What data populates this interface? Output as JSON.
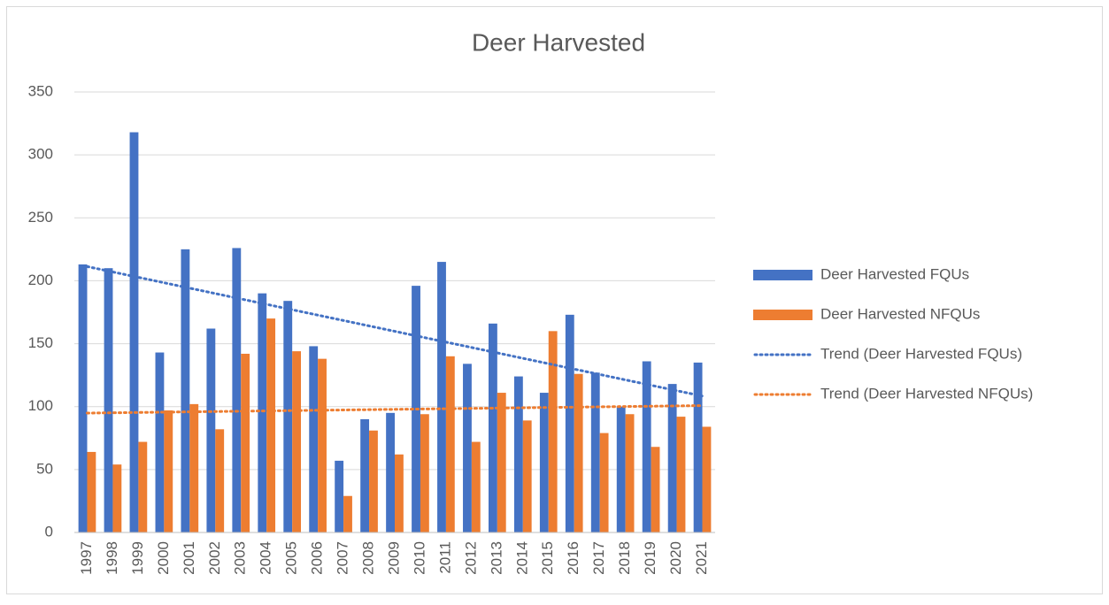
{
  "chart_data": {
    "type": "bar",
    "title": "Deer Harvested",
    "categories": [
      "1997",
      "1998",
      "1999",
      "2000",
      "2001",
      "2002",
      "2003",
      "2004",
      "2005",
      "2006",
      "2007",
      "2008",
      "2009",
      "2010",
      "2011",
      "2012",
      "2013",
      "2014",
      "2015",
      "2016",
      "2017",
      "2018",
      "2019",
      "2020",
      "2021"
    ],
    "series": [
      {
        "name": "Deer Harvested FQUs",
        "color": "#4472c4",
        "values": [
          213,
          210,
          318,
          143,
          225,
          162,
          226,
          190,
          184,
          148,
          57,
          90,
          95,
          196,
          215,
          134,
          166,
          124,
          111,
          173,
          127,
          100,
          136,
          118,
          135
        ]
      },
      {
        "name": "Deer Harvested NFQUs",
        "color": "#ed7d31",
        "values": [
          64,
          54,
          72,
          97,
          102,
          82,
          142,
          170,
          144,
          138,
          29,
          81,
          62,
          94,
          140,
          72,
          111,
          89,
          160,
          126,
          79,
          94,
          68,
          92,
          84
        ]
      }
    ],
    "trendlines": [
      {
        "name": "Trend (Deer Harvested FQUs)",
        "color": "#4472c4",
        "series": 0
      },
      {
        "name": "Trend (Deer Harvested NFQUs)",
        "color": "#ed7d31",
        "series": 1
      }
    ],
    "ylim": [
      0,
      350
    ],
    "yticks": [
      0,
      50,
      100,
      150,
      200,
      250,
      300,
      350
    ],
    "grid": true,
    "legend": "right"
  }
}
